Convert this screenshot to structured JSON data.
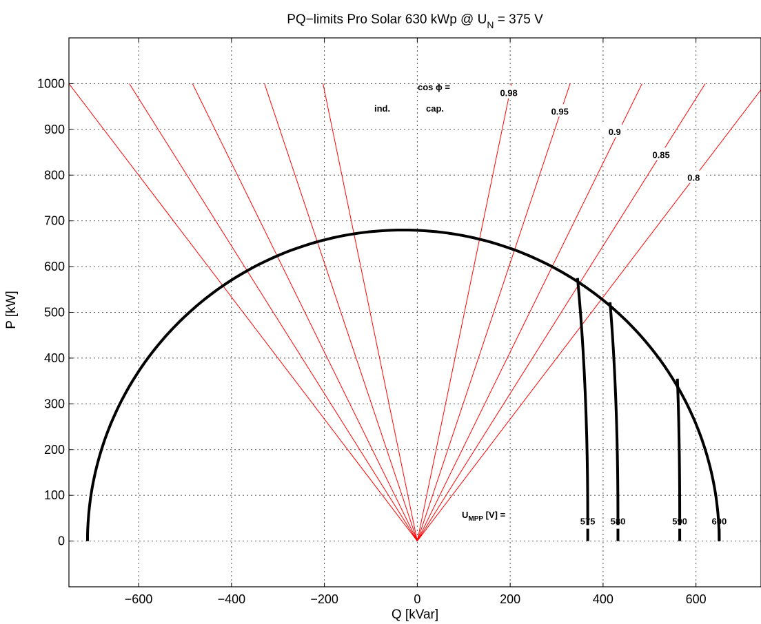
{
  "chart_data": {
    "type": "line",
    "title": "PQ−limits Pro Solar 630 kWp @ U",
    "title_sub": "N",
    "title_tail": " = 375 V",
    "xlabel": "Q [kVar]",
    "ylabel": "P [kW]",
    "xlim": [
      -750,
      740
    ],
    "ylim": [
      -100,
      1100
    ],
    "xticks": [
      -600,
      -400,
      -200,
      0,
      200,
      400,
      600
    ],
    "yticks": [
      0,
      100,
      200,
      300,
      400,
      500,
      600,
      700,
      800,
      900,
      1000
    ],
    "grid": true,
    "colors": {
      "pf_lines": "#ff0000",
      "limits": "#000000",
      "grid": "#555555"
    },
    "pq_circle": {
      "center_q": -30,
      "center_p": 0,
      "radius": 680
    },
    "cos_phi_lines": [
      {
        "label": "0.98",
        "q_at_1000": 203
      },
      {
        "label": "0.95",
        "q_at_1000": 329
      },
      {
        "label": "0.9",
        "q_at_1000": 484
      },
      {
        "label": "0.85",
        "q_at_1000": 620
      },
      {
        "label": "0.8",
        "q_at_1000": 750
      },
      {
        "label": "",
        "q_at_1000": -203
      },
      {
        "label": "",
        "q_at_1000": -329
      },
      {
        "label": "",
        "q_at_1000": -484
      },
      {
        "label": "",
        "q_at_1000": -620
      },
      {
        "label": "",
        "q_at_1000": -750
      }
    ],
    "cos_phi_label_points": [
      {
        "label": "0.98",
        "q": 197,
        "p": 980
      },
      {
        "label": "0.95",
        "q": 307,
        "p": 940
      },
      {
        "label": "0.9",
        "q": 425,
        "p": 895
      },
      {
        "label": "0.85",
        "q": 525,
        "p": 845
      },
      {
        "label": "0.8",
        "q": 595,
        "p": 795
      }
    ],
    "annotations": {
      "cos_phi": "cos ϕ =",
      "ind": "ind.",
      "cap": "cap.",
      "umpp_main": "U",
      "umpp_sub": "MPP",
      "umpp_tail": " [V] ="
    },
    "umpp_limits": [
      {
        "label": "575",
        "top_q": 345,
        "top_p": 575,
        "bottom_q": 367
      },
      {
        "label": "580",
        "top_q": 415,
        "top_p": 522,
        "bottom_q": 432
      },
      {
        "label": "590",
        "top_q": 560,
        "top_p": 355,
        "bottom_q": 565
      },
      {
        "label": "600",
        "top_q": 650,
        "top_p": 0,
        "bottom_q": 650
      }
    ]
  }
}
